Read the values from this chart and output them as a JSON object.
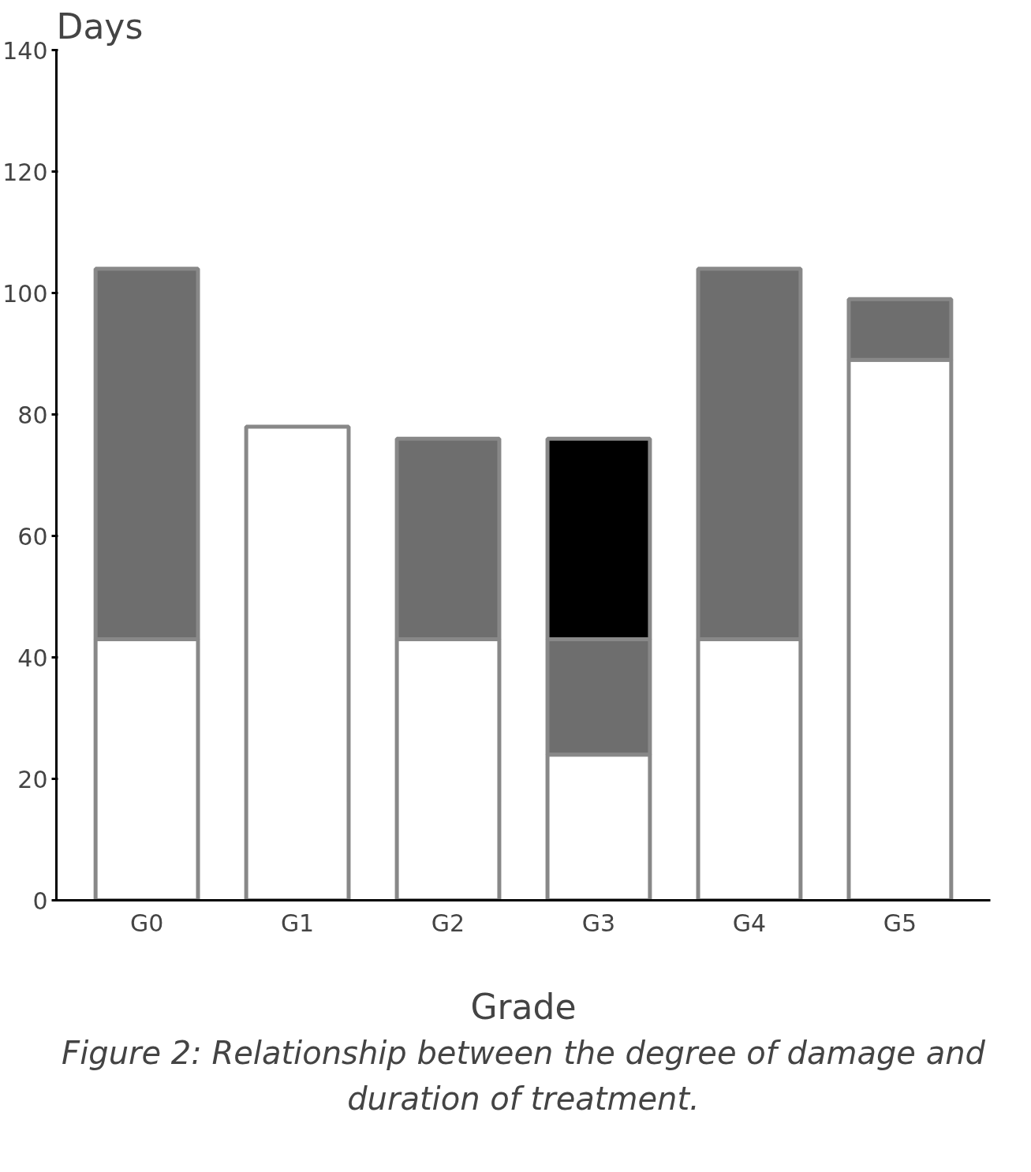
{
  "chart_data": {
    "type": "bar",
    "stacked": true,
    "title": "Figure 2: Relationship between the degree of damage and duration of treatment.",
    "ylabel": "Days",
    "xlabel": "Grade",
    "categories": [
      "G0",
      "G1",
      "G2",
      "G3",
      "G4",
      "G5"
    ],
    "series": [
      {
        "color": "#ffffff",
        "values": [
          43,
          78,
          43,
          24,
          43,
          89
        ]
      },
      {
        "color": "#6e6e6e",
        "values": [
          61,
          null,
          33,
          19,
          61,
          10
        ]
      },
      {
        "color": "#000000",
        "values": [
          null,
          null,
          null,
          33,
          null,
          null
        ]
      }
    ],
    "ylim": [
      0,
      140
    ],
    "yticks": [
      0,
      20,
      40,
      60,
      80,
      100,
      120,
      140
    ],
    "grid": false
  }
}
